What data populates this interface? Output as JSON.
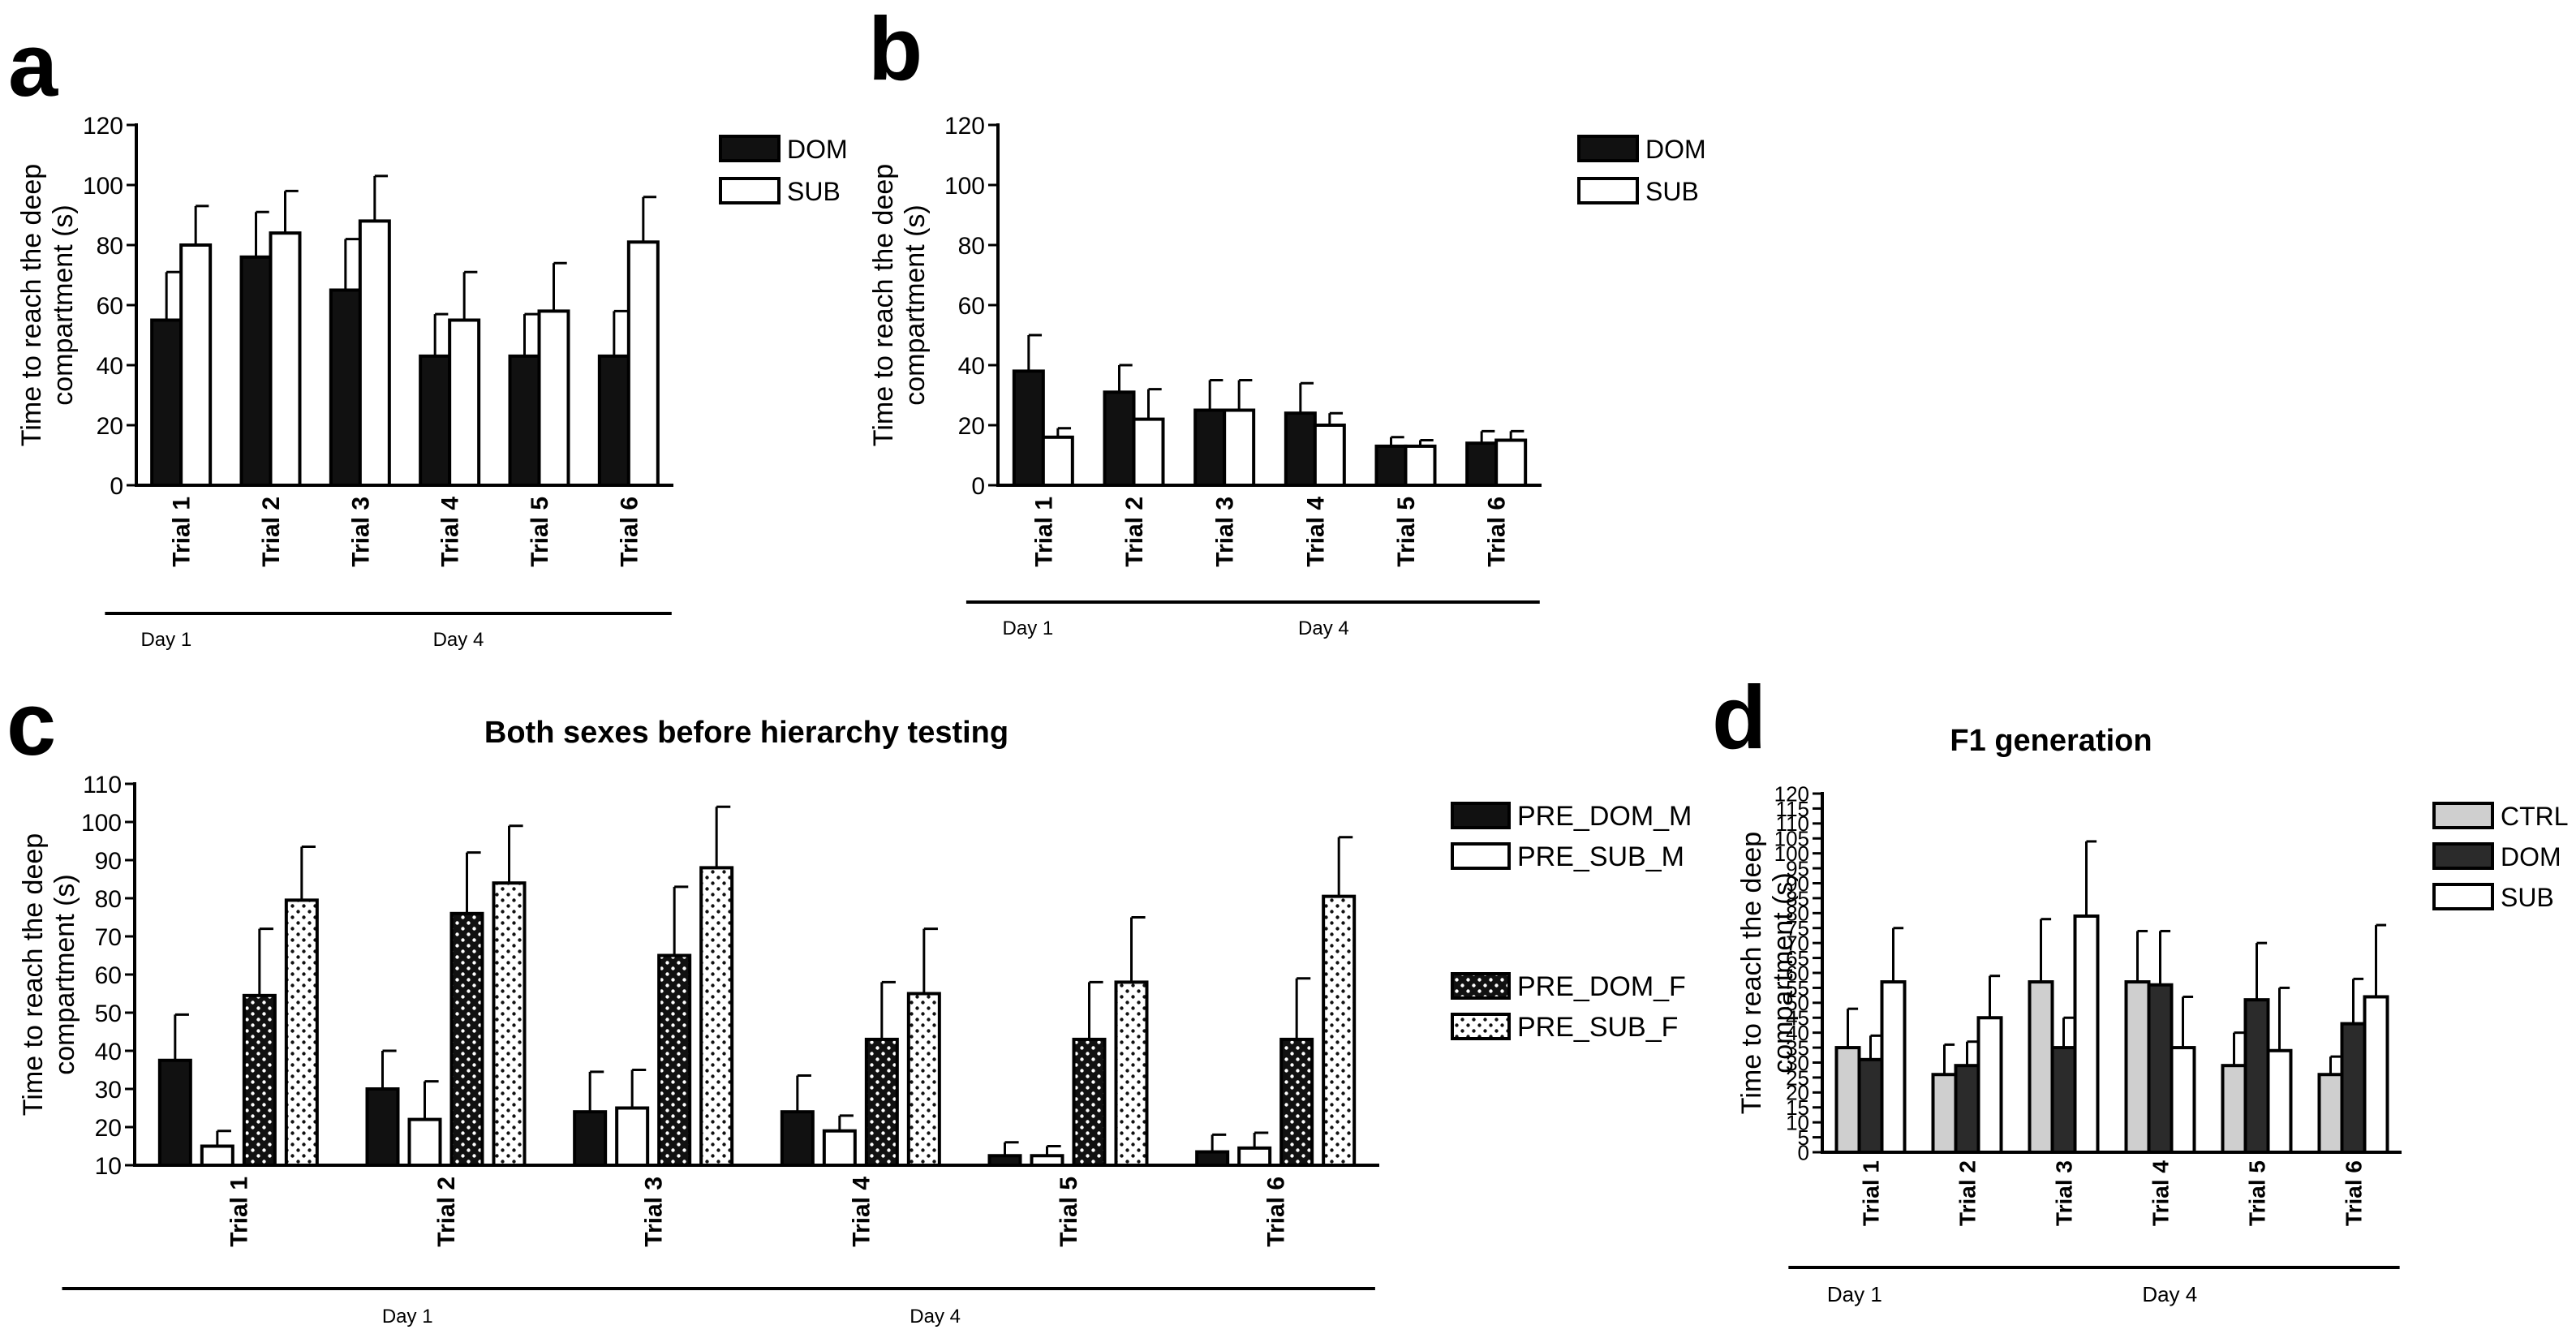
{
  "chart_data": [
    {
      "panel_label": "a",
      "type": "bar",
      "title": "",
      "ylabel": "Time to reach the deep compartment (s)",
      "ylim": [
        0,
        120
      ],
      "yticks": [
        0,
        20,
        40,
        60,
        80,
        100,
        120
      ],
      "categories": [
        "Trial 1",
        "Trial 2",
        "Trial 3",
        "Trial 4",
        "Trial 5",
        "Trial 6"
      ],
      "series": [
        {
          "name": "DOM",
          "pattern": "black",
          "values": [
            55,
            76,
            65,
            43,
            43,
            43
          ],
          "errors": [
            16,
            15,
            17,
            14,
            14,
            15
          ]
        },
        {
          "name": "SUB",
          "pattern": "white",
          "values": [
            80,
            84,
            88,
            55,
            58,
            81
          ],
          "errors": [
            13,
            14,
            15,
            16,
            16,
            15
          ]
        }
      ],
      "groups": [
        {
          "label": "Day 1",
          "from": 0,
          "to": 2
        },
        {
          "label": "Day 4",
          "from": 3,
          "to": 5
        }
      ],
      "legend": "top-right"
    },
    {
      "panel_label": "b",
      "type": "bar",
      "title": "",
      "ylabel": "Time to reach the deep compartment (s)",
      "ylim": [
        0,
        120
      ],
      "yticks": [
        0,
        20,
        40,
        60,
        80,
        100,
        120
      ],
      "categories": [
        "Trial 1",
        "Trial 2",
        "Trial 3",
        "Trial 4",
        "Trial 5",
        "Trial 6"
      ],
      "series": [
        {
          "name": "DOM",
          "pattern": "black",
          "values": [
            38,
            31,
            25,
            24,
            13,
            14
          ],
          "errors": [
            12,
            9,
            10,
            10,
            3,
            4
          ]
        },
        {
          "name": "SUB",
          "pattern": "white",
          "values": [
            16,
            22,
            25,
            20,
            13,
            15
          ],
          "errors": [
            3,
            10,
            10,
            4,
            2,
            3
          ]
        }
      ],
      "groups": [
        {
          "label": "Day 1",
          "from": 0,
          "to": 2
        },
        {
          "label": "Day 4",
          "from": 3,
          "to": 5
        }
      ],
      "legend": "top-right"
    },
    {
      "panel_label": "c",
      "type": "bar",
      "title": "Both sexes before hierarchy testing",
      "ylabel": "Time to reach the deep compartment (s)",
      "ylim": [
        10,
        110
      ],
      "yticks": [
        10,
        20,
        30,
        40,
        50,
        60,
        70,
        80,
        90,
        100,
        110
      ],
      "categories": [
        "Trial 1",
        "Trial 2",
        "Trial 3",
        "Trial 4",
        "Trial 5",
        "Trial 6"
      ],
      "series": [
        {
          "name": "PRE_DOM_M",
          "pattern": "black",
          "values": [
            37.5,
            30,
            24,
            24,
            12.5,
            13.5
          ],
          "errors": [
            12,
            10,
            10.5,
            9.5,
            3.5,
            4.5
          ]
        },
        {
          "name": "PRE_SUB_M",
          "pattern": "white",
          "values": [
            15,
            22,
            25,
            19,
            12.5,
            14.5
          ],
          "errors": [
            4,
            10,
            10,
            4,
            2.5,
            4
          ]
        },
        {
          "name": "PRE_DOM_F",
          "pattern": "dots-dark",
          "values": [
            54.5,
            76,
            65,
            43,
            43,
            43
          ],
          "errors": [
            17.5,
            16,
            18,
            15,
            15,
            16
          ]
        },
        {
          "name": "PRE_SUB_F",
          "pattern": "dots-light",
          "values": [
            79.5,
            84,
            88,
            55,
            58,
            80.5
          ],
          "errors": [
            14,
            15,
            16,
            17,
            17,
            15.5
          ]
        }
      ],
      "groups": [
        {
          "label": "Day 1",
          "from": 0,
          "to": 2
        },
        {
          "label": "Day 4",
          "from": 3,
          "to": 5
        }
      ],
      "legend": "right"
    },
    {
      "panel_label": "d",
      "type": "bar",
      "title": "F1 generation",
      "ylabel": "Time to reach the deep compartment (s)",
      "ylim": [
        0,
        120
      ],
      "yticks": [
        0,
        5,
        10,
        15,
        20,
        25,
        30,
        35,
        40,
        45,
        50,
        55,
        60,
        65,
        70,
        75,
        80,
        85,
        90,
        95,
        100,
        105,
        110,
        115,
        120
      ],
      "categories": [
        "Trial 1",
        "Trial 2",
        "Trial 3",
        "Trial 4",
        "Trial 5",
        "Trial 6"
      ],
      "series": [
        {
          "name": "CTRL",
          "pattern": "grey",
          "values": [
            35,
            26,
            57,
            57,
            29,
            26
          ],
          "errors": [
            13,
            10,
            21,
            17,
            11,
            6
          ]
        },
        {
          "name": "DOM",
          "pattern": "darkgrey",
          "values": [
            31,
            29,
            35,
            56,
            51,
            43
          ],
          "errors": [
            8,
            8,
            10,
            18,
            19,
            15
          ]
        },
        {
          "name": "SUB",
          "pattern": "white",
          "values": [
            57,
            45,
            79,
            35,
            34,
            52
          ],
          "errors": [
            18,
            14,
            25,
            17,
            21,
            24
          ]
        }
      ],
      "groups": [
        {
          "label": "Day 1",
          "from": 0,
          "to": 2
        },
        {
          "label": "Day 4",
          "from": 3,
          "to": 5
        }
      ],
      "legend": "top-right"
    }
  ],
  "colors": {
    "black": "#111111",
    "white": "#ffffff",
    "grey": "#cfcfcf",
    "darkgrey": "#2b2b2b",
    "dot_dark_bg": "#111111",
    "dot_light_bg": "#ffffff"
  }
}
